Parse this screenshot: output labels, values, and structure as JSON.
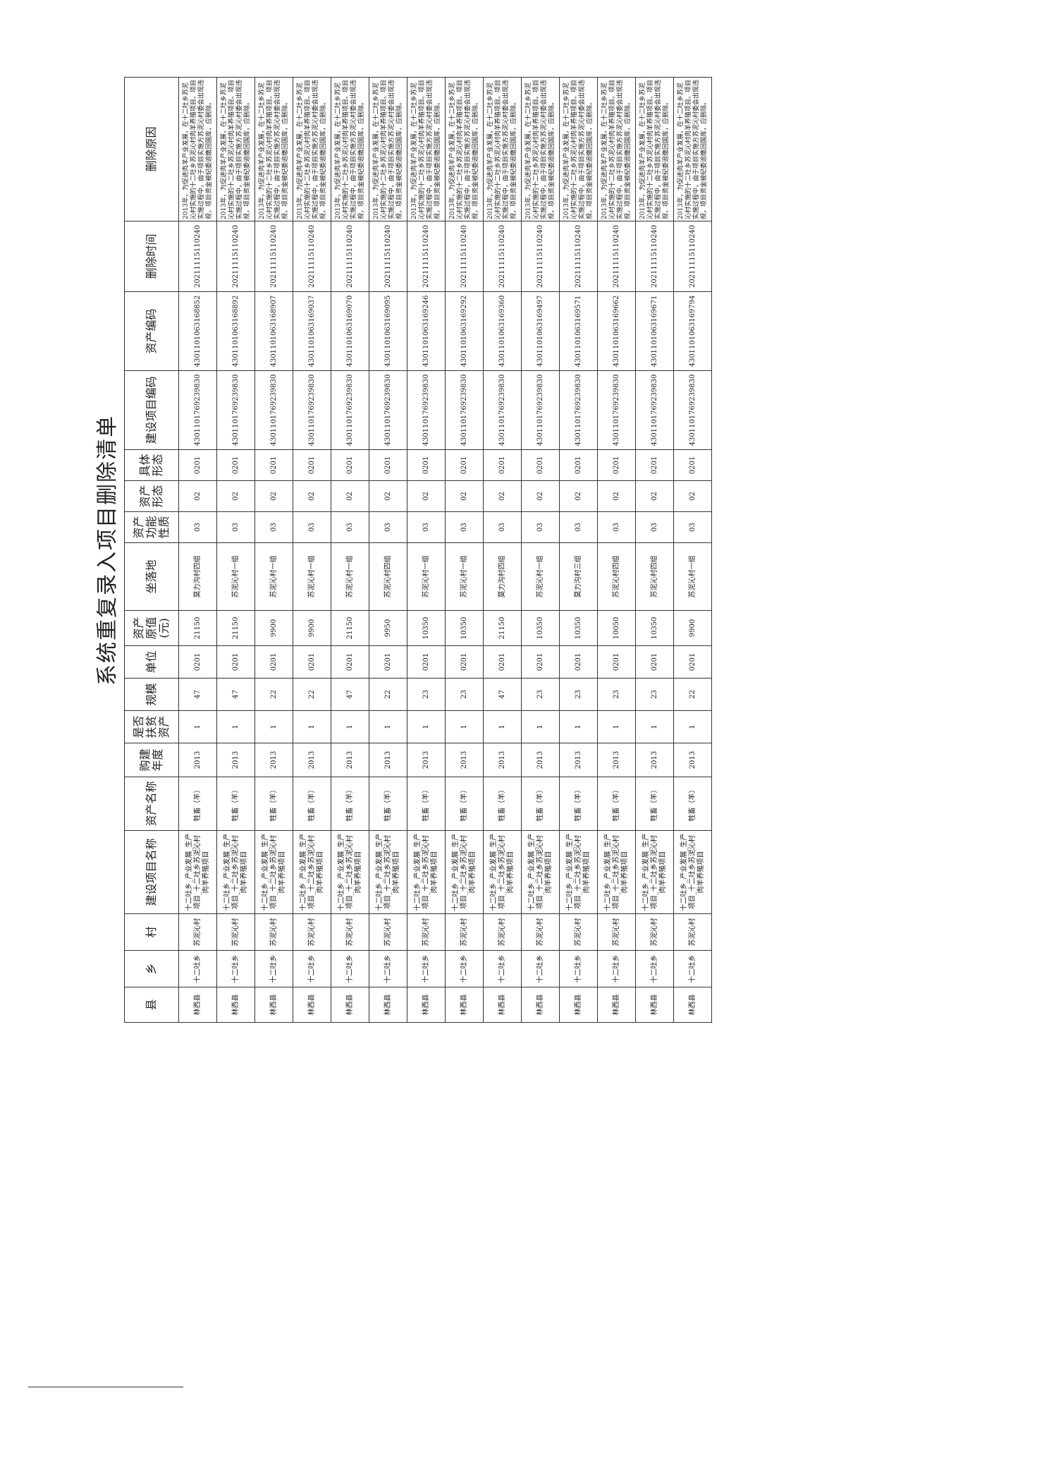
{
  "header": {
    "title": "系统重复录入项目删除清单"
  },
  "table": {
    "columns": [
      "县",
      "乡",
      "村",
      "建设项目名称",
      "资产名称",
      "购建年度",
      "是否扶贫资产",
      "规模",
      "单位",
      "资产原值(元)",
      "坐落地",
      "资产功能性质",
      "资产形态",
      "具体形态",
      "建设项目编码",
      "资产编码",
      "删除时间",
      "删除原因"
    ],
    "rows": [
      [
        "林西县",
        "十二吐乡",
        "苏泥沁村",
        "十二吐乡_产业发展_生产项目_十二吐乡苏泥沁村肉羊养殖项目",
        "牲畜（羊）",
        "2013",
        "1",
        "47",
        "0201",
        "21150",
        "莫力沟村四组",
        "03",
        "02",
        "0201",
        "4301101769239830",
        "4301101063168852",
        "20211115110240",
        "2013年，为促进肉羊产业发展，在十二吐乡苏泥沁村实施的十二吐乡苏泥沁村肉羊养殖项目。项目实施过程中，由于项目实施方苏泥沁村委会出现违规，项目资金被纪委追缴回国库，应删除。"
      ],
      [
        "林西县",
        "十二吐乡",
        "苏泥沁村",
        "十二吐乡_产业发展_生产项目_十二吐乡苏泥沁村肉羊养殖项目",
        "牲畜（羊）",
        "2013",
        "1",
        "47",
        "0201",
        "21150",
        "苏泥沁村一组",
        "03",
        "02",
        "0201",
        "4301101769239830",
        "4301101063168892",
        "20211115110240",
        "2013年，为促进肉羊产业发展，在十二吐乡苏泥沁村实施的十二吐乡苏泥沁村肉羊养殖项目。项目实施过程中，由于项目实施方苏泥沁村委会出现违规，项目资金被纪委追缴回国库，应删除。"
      ],
      [
        "林西县",
        "十二吐乡",
        "苏泥沁村",
        "十二吐乡_产业发展_生产项目_十二吐乡苏泥沁村肉羊养殖项目",
        "牲畜（羊）",
        "2013",
        "1",
        "22",
        "0201",
        "9900",
        "苏泥沁村一组",
        "03",
        "02",
        "0201",
        "4301101769239830",
        "4301101063168907",
        "20211115110240",
        "2013年，为促进肉羊产业发展，在十二吐乡苏泥沁村实施的十二吐乡苏泥沁村肉羊养殖项目。项目实施过程中，由于项目实施方苏泥沁村委会出现违规，项目资金被纪委追缴回国库，应删除。"
      ],
      [
        "林西县",
        "十二吐乡",
        "苏泥沁村",
        "十二吐乡_产业发展_生产项目_十二吐乡苏泥沁村肉羊养殖项目",
        "牲畜（羊）",
        "2013",
        "1",
        "22",
        "0201",
        "9900",
        "苏泥沁村一组",
        "03",
        "02",
        "0201",
        "4301101769239830",
        "4301101063169037",
        "20211115110240",
        "2013年，为促进肉羊产业发展，在十二吐乡苏泥沁村实施的十二吐乡苏泥沁村肉羊养殖项目。项目实施过程中，由于项目实施方苏泥沁村委会出现违规，项目资金被纪委追缴回国库，应删除。"
      ],
      [
        "林西县",
        "十二吐乡",
        "苏泥沁村",
        "十二吐乡_产业发展_生产项目_十二吐乡苏泥沁村肉羊养殖项目",
        "牲畜（羊）",
        "2013",
        "1",
        "47",
        "0201",
        "21150",
        "苏泥沁村一组",
        "03",
        "02",
        "0201",
        "4301101769239830",
        "4301101063169070",
        "20211115110240",
        "2013年，为促进肉羊产业发展，在十二吐乡苏泥沁村实施的十二吐乡苏泥沁村肉羊养殖项目。项目实施过程中，由于项目实施方苏泥沁村委会出现违规，项目资金被纪委追缴回国库，应删除。"
      ],
      [
        "林西县",
        "十二吐乡",
        "苏泥沁村",
        "十二吐乡_产业发展_生产项目_十二吐乡苏泥沁村肉羊养殖项目",
        "牲畜（羊）",
        "2013",
        "1",
        "22",
        "0201",
        "9950",
        "苏泥沁村四组",
        "03",
        "02",
        "0201",
        "4301101769239830",
        "4301101063169095",
        "20211115110240",
        "2013年，为促进肉羊产业发展，在十二吐乡苏泥沁村实施的十二吐乡苏泥沁村肉羊养殖项目。项目实施过程中，由于项目实施方苏泥沁村委会出现违规，项目资金被纪委追缴回国库，应删除。"
      ],
      [
        "林西县",
        "十二吐乡",
        "苏泥沁村",
        "十二吐乡_产业发展_生产项目_十二吐乡苏泥沁村肉羊养殖项目",
        "牲畜（羊）",
        "2013",
        "1",
        "23",
        "0201",
        "10350",
        "苏泥沁村一组",
        "03",
        "02",
        "0201",
        "4301101769239830",
        "4301101063169246",
        "20211115110240",
        "2013年，为促进肉羊产业发展，在十二吐乡苏泥沁村实施的十二吐乡苏泥沁村肉羊养殖项目。项目实施过程中，由于项目实施方苏泥沁村委会出现违规，项目资金被纪委追缴回国库，应删除。"
      ],
      [
        "林西县",
        "十二吐乡",
        "苏泥沁村",
        "十二吐乡_产业发展_生产项目_十二吐乡苏泥沁村肉羊养殖项目",
        "牲畜（羊）",
        "2013",
        "1",
        "23",
        "0201",
        "10350",
        "苏泥沁村一组",
        "03",
        "02",
        "0201",
        "4301101769239830",
        "4301101063169292",
        "20211115110240",
        "2013年，为促进肉羊产业发展，在十二吐乡苏泥沁村实施的十二吐乡苏泥沁村肉羊养殖项目。项目实施过程中，由于项目实施方苏泥沁村委会出现违规，项目资金被纪委追缴回国库，应删除。"
      ],
      [
        "林西县",
        "十二吐乡",
        "苏泥沁村",
        "十二吐乡_产业发展_生产项目_十二吐乡苏泥沁村肉羊养殖项目",
        "牲畜（羊）",
        "2013",
        "1",
        "47",
        "0201",
        "21150",
        "莫力沟村四组",
        "03",
        "02",
        "0201",
        "4301101769239830",
        "4301101063169360",
        "20211115110240",
        "2013年，为促进肉羊产业发展，在十二吐乡苏泥沁村实施的十二吐乡苏泥沁村肉羊养殖项目。项目实施过程中，由于项目实施方苏泥沁村委会出现违规，项目资金被纪委追缴回国库，应删除。"
      ],
      [
        "林西县",
        "十二吐乡",
        "苏泥沁村",
        "十二吐乡_产业发展_生产项目_十二吐乡苏泥沁村肉羊养殖项目",
        "牲畜（羊）",
        "2013",
        "1",
        "23",
        "0201",
        "10350",
        "苏泥沁村一组",
        "03",
        "02",
        "0201",
        "4301101769239830",
        "4301101063169497",
        "20211115110240",
        "2013年，为促进肉羊产业发展，在十二吐乡苏泥沁村实施的十二吐乡苏泥沁村肉羊养殖项目。项目实施过程中，由于项目实施方苏泥沁村委会出现违规，项目资金被纪委追缴回国库，应删除。"
      ],
      [
        "林西县",
        "十二吐乡",
        "苏泥沁村",
        "十二吐乡_产业发展_生产项目_十二吐乡苏泥沁村肉羊养殖项目",
        "牲畜（羊）",
        "2013",
        "1",
        "23",
        "0201",
        "10350",
        "莫力沟村三组",
        "03",
        "02",
        "0201",
        "4301101769239830",
        "4301101063169571",
        "20211115110240",
        "2013年，为促进肉羊产业发展，在十二吐乡苏泥沁村实施的十二吐乡苏泥沁村肉羊养殖项目。项目实施过程中，由于项目实施方苏泥沁村委会出现违规，项目资金被纪委追缴回国库，应删除。"
      ],
      [
        "林西县",
        "十二吐乡",
        "苏泥沁村",
        "十二吐乡_产业发展_生产项目_十二吐乡苏泥沁村肉羊养殖项目",
        "牲畜（羊）",
        "2013",
        "1",
        "23",
        "0201",
        "10050",
        "苏泥沁村四组",
        "03",
        "02",
        "0201",
        "4301101769239830",
        "4301101063169662",
        "20211115110240",
        "2013年，为促进肉羊产业发展，在十二吐乡苏泥沁村实施的十二吐乡苏泥沁村肉羊养殖项目。项目实施过程中，由于项目实施方苏泥沁村委会出现违规，项目资金被纪委追缴回国库，应删除。"
      ],
      [
        "林西县",
        "十二吐乡",
        "苏泥沁村",
        "十二吐乡_产业发展_生产项目_十二吐乡苏泥沁村肉羊养殖项目",
        "牲畜（羊）",
        "2013",
        "1",
        "23",
        "0201",
        "10350",
        "苏泥沁村四组",
        "03",
        "02",
        "0201",
        "4301101769239830",
        "4301101063169671",
        "20211115110240",
        "2013年，为促进肉羊产业发展，在十二吐乡苏泥沁村实施的十二吐乡苏泥沁村肉羊养殖项目。项目实施过程中，由于项目实施方苏泥沁村委会出现违规，项目资金被纪委追缴回国库，应删除。"
      ],
      [
        "林西县",
        "十二吐乡",
        "苏泥沁村",
        "十二吐乡_产业发展_生产项目_十二吐乡苏泥沁村肉羊养殖项目",
        "牲畜（羊）",
        "2013",
        "1",
        "22",
        "0201",
        "9900",
        "苏泥沁村一组",
        "03",
        "02",
        "0201",
        "4301101769239830",
        "4301101063169794",
        "20211115110240",
        "2013年，为促进肉羊产业发展，在十二吐乡苏泥沁村实施的十二吐乡苏泥沁村肉羊养殖项目。项目实施过程中，由于项目实施方苏泥沁村委会出现违规，项目资金被纪委追缴回国库，应删除。"
      ]
    ]
  }
}
